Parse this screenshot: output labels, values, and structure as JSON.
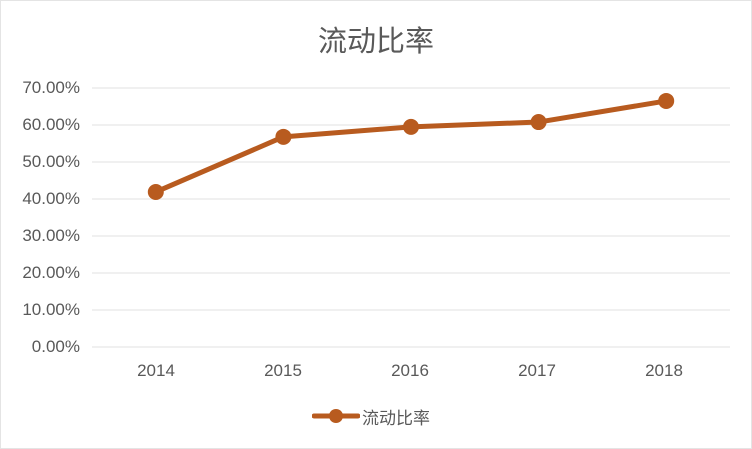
{
  "chart_data": {
    "type": "line",
    "title": "流动比率",
    "categories": [
      "2014",
      "2015",
      "2016",
      "2017",
      "2018"
    ],
    "series": [
      {
        "name": "流动比率",
        "values": [
          0.419,
          0.568,
          0.595,
          0.608,
          0.665
        ],
        "color": "#B85B1F"
      }
    ],
    "xlabel": "",
    "ylabel": "",
    "ylim": [
      0,
      0.7
    ],
    "yticks": [
      "0.00%",
      "10.00%",
      "20.00%",
      "30.00%",
      "40.00%",
      "50.00%",
      "60.00%",
      "70.00%"
    ],
    "grid": true,
    "legend_position": "bottom"
  },
  "title": "流动比率",
  "y_axis": {
    "ticks": [
      "70.00%",
      "60.00%",
      "50.00%",
      "40.00%",
      "30.00%",
      "20.00%",
      "10.00%",
      "0.00%"
    ]
  },
  "x_axis": {
    "ticks": [
      "2014",
      "2015",
      "2016",
      "2017",
      "2018"
    ]
  },
  "legend": {
    "label": "流动比率",
    "color": "#B85B1F"
  }
}
